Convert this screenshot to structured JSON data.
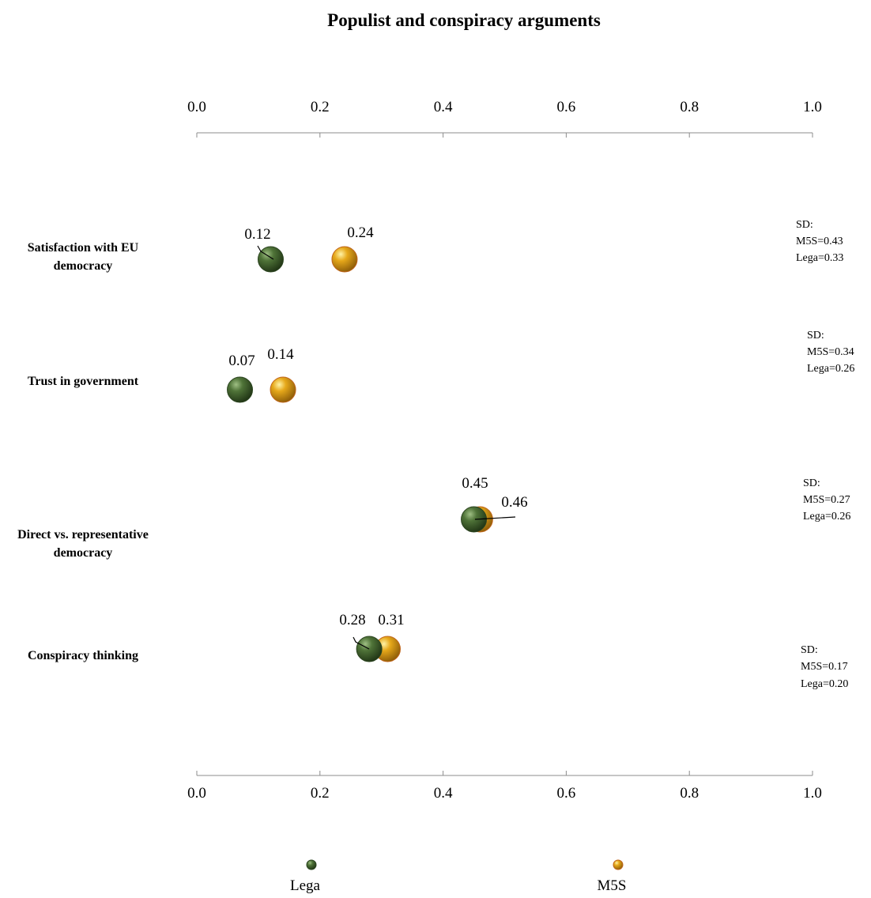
{
  "chart_data": {
    "type": "scatter",
    "title": "Populist and conspiracy arguments",
    "xlim": [
      0,
      1
    ],
    "ticks": [
      "0.0",
      "0.2",
      "0.4",
      "0.6",
      "0.8",
      "1.0"
    ],
    "tick_values": [
      0,
      0.2,
      0.4,
      0.6,
      0.8,
      1.0
    ],
    "grid": false,
    "legend_placement": "bottom",
    "categories": [
      [
        "Satisfaction with EU",
        "democracy"
      ],
      [
        "Trust in government"
      ],
      [
        "Direct vs. representative",
        "democracy"
      ],
      [
        "Conspiracy thinking"
      ]
    ],
    "series": [
      {
        "name": "Lega",
        "color": "#3e5e2c",
        "values": [
          0.12,
          0.07,
          0.45,
          0.28
        ],
        "labels": [
          "0.12",
          "0.07",
          "0.45",
          "0.28"
        ]
      },
      {
        "name": "M5S",
        "color": "#e3a41a",
        "values": [
          0.24,
          0.14,
          0.46,
          0.31
        ],
        "labels": [
          "0.24",
          "0.14",
          "0.46",
          "0.31"
        ]
      }
    ],
    "sd_annotations": [
      [
        "SD:",
        "M5S=0.43",
        "Lega=0.33"
      ],
      [
        "SD:",
        "M5S=0.34",
        "Lega=0.26"
      ],
      [
        "SD:",
        "M5S=0.27",
        "Lega=0.26"
      ],
      [
        "SD:",
        "M5S=0.17",
        "Lega=0.20"
      ]
    ]
  }
}
